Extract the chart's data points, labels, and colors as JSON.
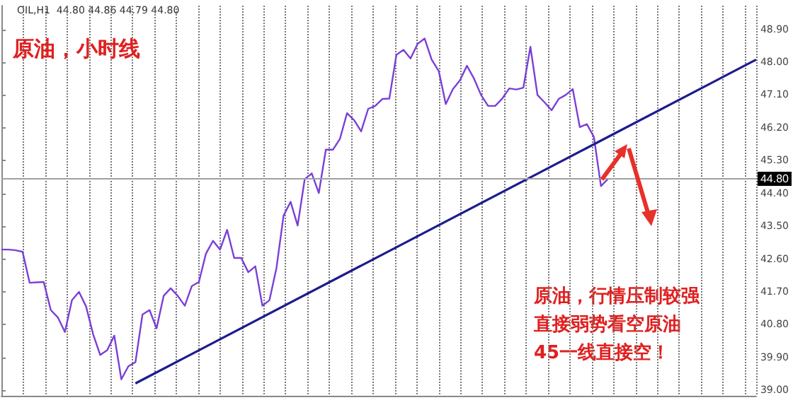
{
  "chart_data": {
    "type": "line",
    "title": "原油，小时线",
    "annotations": [
      "OIL,H1  44.80 44.86 44.79 44.80",
      "原油，行情压制较强直接弱势看空原油45一线直接空！"
    ],
    "categories": [
      null,
      null,
      null,
      null,
      null,
      null,
      null,
      null,
      null,
      null,
      null,
      null,
      null,
      null,
      null,
      null,
      null,
      null,
      null,
      null,
      null,
      null,
      null,
      null,
      null,
      null,
      null,
      null,
      null,
      null,
      null,
      null,
      null,
      null,
      null,
      null,
      null,
      null,
      null,
      null,
      null,
      null,
      null,
      null,
      null,
      null,
      null,
      null,
      null,
      null,
      null,
      null,
      null,
      null,
      null,
      null,
      null,
      null,
      null,
      null,
      null,
      null,
      null,
      null,
      null,
      null,
      null,
      null,
      null,
      null,
      null,
      null,
      null,
      null,
      null,
      null,
      null,
      null,
      null,
      null,
      null,
      null,
      null,
      null,
      null,
      null,
      null
    ],
    "series": [
      {
        "color": "#7b3fd8",
        "values": [
          42.86,
          42.86,
          42.84,
          42.8,
          41.95,
          41.96,
          41.97,
          41.2,
          41.0,
          40.6,
          41.47,
          41.7,
          41.3,
          40.54,
          39.97,
          40.1,
          40.5,
          39.3,
          39.66,
          39.77,
          41.08,
          41.2,
          40.7,
          41.59,
          41.8,
          41.59,
          41.32,
          41.86,
          41.97,
          42.75,
          43.1,
          42.86,
          43.4,
          42.63,
          42.63,
          42.24,
          42.4,
          41.32,
          41.47,
          42.36,
          43.79,
          44.17,
          43.52,
          44.79,
          44.95,
          44.41,
          45.6,
          45.6,
          45.9,
          46.6,
          46.41,
          46.1,
          46.72,
          46.8,
          46.99,
          47.0,
          48.2,
          48.34,
          48.1,
          48.5,
          48.65,
          48.07,
          47.76,
          46.85,
          47.26,
          47.5,
          47.9,
          47.55,
          47.1,
          46.8,
          46.8,
          47.0,
          47.28,
          47.25,
          47.3,
          48.42,
          47.1,
          46.9,
          46.68,
          46.99,
          47.1,
          47.26,
          46.22,
          46.3,
          45.95,
          44.6,
          44.8
        ]
      },
      {
        "color": "#1c1c8e",
        "values": [
          null,
          null,
          null,
          null,
          null,
          null,
          null,
          null,
          null,
          null,
          null,
          null,
          null,
          null,
          null,
          null,
          null,
          null,
          null,
          39.19,
          null,
          null,
          null,
          null,
          null,
          null,
          null,
          null,
          null,
          null,
          null,
          null,
          null,
          null,
          null,
          null,
          null,
          null,
          null,
          null,
          null,
          null,
          null,
          null,
          null,
          null,
          null,
          null,
          null,
          null,
          null,
          null,
          null,
          null,
          null,
          null,
          null,
          null,
          null,
          null,
          null,
          null,
          null,
          null,
          null,
          null,
          null,
          null,
          null,
          null,
          null,
          null,
          null,
          null,
          null,
          null,
          null,
          null,
          null,
          null,
          null,
          null,
          null,
          null,
          null,
          null,
          45.95
        ]
      }
    ],
    "ylim": [
      38.85,
      49.55
    ],
    "yticks": [
      {
        "value": 39,
        "label": "39.00"
      },
      {
        "value": 39.9,
        "label": "39.90"
      },
      {
        "value": 40.8,
        "label": "40.80"
      },
      {
        "value": 41.7,
        "label": "41.70"
      },
      {
        "value": 42.6,
        "label": "42.60"
      },
      {
        "value": 43.5,
        "label": "43.50"
      },
      {
        "value": 44.4,
        "label": "44.40"
      },
      {
        "value": 45.3,
        "label": "45.30"
      },
      {
        "value": 46.2,
        "label": "46.20"
      },
      {
        "value": 47.1,
        "label": "47.10"
      },
      {
        "value": 48,
        "label": "48.00"
      },
      {
        "value": 48.9,
        "label": "48.90"
      }
    ],
    "ref_lines": [
      {
        "axis": "y",
        "value": 44.8,
        "label": "44.80",
        "color": "#a0a0a0"
      }
    ],
    "grid": "x",
    "tick_labels": "y"
  }
}
